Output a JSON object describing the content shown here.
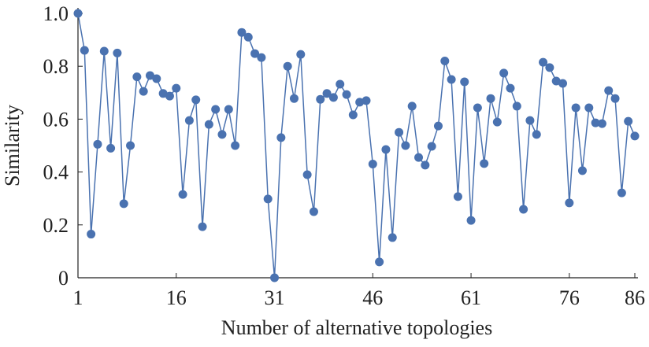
{
  "chart_data": {
    "type": "line",
    "x_label": "Number of alternative topologies",
    "y_label": "Similarity",
    "x": [
      1,
      2,
      3,
      4,
      5,
      6,
      7,
      8,
      9,
      10,
      11,
      12,
      13,
      14,
      15,
      16,
      17,
      18,
      19,
      20,
      21,
      22,
      23,
      24,
      25,
      26,
      27,
      28,
      29,
      30,
      31,
      32,
      33,
      34,
      35,
      36,
      37,
      38,
      39,
      40,
      41,
      42,
      43,
      44,
      45,
      46,
      47,
      48,
      49,
      50,
      51,
      52,
      53,
      54,
      55,
      56,
      57,
      58,
      59,
      60,
      61,
      62,
      63,
      64,
      65,
      66,
      67,
      68,
      69,
      70,
      71,
      72,
      73,
      74,
      75,
      76,
      77,
      78,
      79,
      80,
      81,
      82,
      83,
      84,
      85,
      86
    ],
    "series": [
      {
        "color": "#4a72b0",
        "values": [
          1.0,
          0.86,
          0.165,
          0.505,
          0.857,
          0.49,
          0.85,
          0.28,
          0.5,
          0.76,
          0.705,
          0.765,
          0.753,
          0.697,
          0.687,
          0.717,
          0.315,
          0.595,
          0.673,
          0.193,
          0.58,
          0.637,
          0.542,
          0.637,
          0.5,
          0.928,
          0.91,
          0.848,
          0.833,
          0.298,
          0,
          0.53,
          0.8,
          0.678,
          0.845,
          0.39,
          0.25,
          0.675,
          0.697,
          0.682,
          0.732,
          0.693,
          0.616,
          0.664,
          0.67,
          0.43,
          0.06,
          0.485,
          0.152,
          0.55,
          0.5,
          0.649,
          0.455,
          0.426,
          0.497,
          0.574,
          0.82,
          0.75,
          0.307,
          0.741,
          0.217,
          0.643,
          0.432,
          0.678,
          0.589,
          0.774,
          0.717,
          0.649,
          0.259,
          0.595,
          0.542,
          0.815,
          0.795,
          0.744,
          0.735,
          0.283,
          0.643,
          0.405,
          0.643,
          0.586,
          0.583,
          0.708,
          0.678,
          0.321,
          0.592,
          0.536
        ]
      }
    ],
    "xlim": [
      1,
      86
    ],
    "xticks": [
      1,
      16,
      31,
      46,
      61,
      76,
      86
    ],
    "ylim": [
      0,
      1.0
    ],
    "yticks": [
      0,
      0.2,
      0.4,
      0.6,
      0.8,
      {
        "value": 1.0,
        "label": "1.0"
      }
    ]
  }
}
